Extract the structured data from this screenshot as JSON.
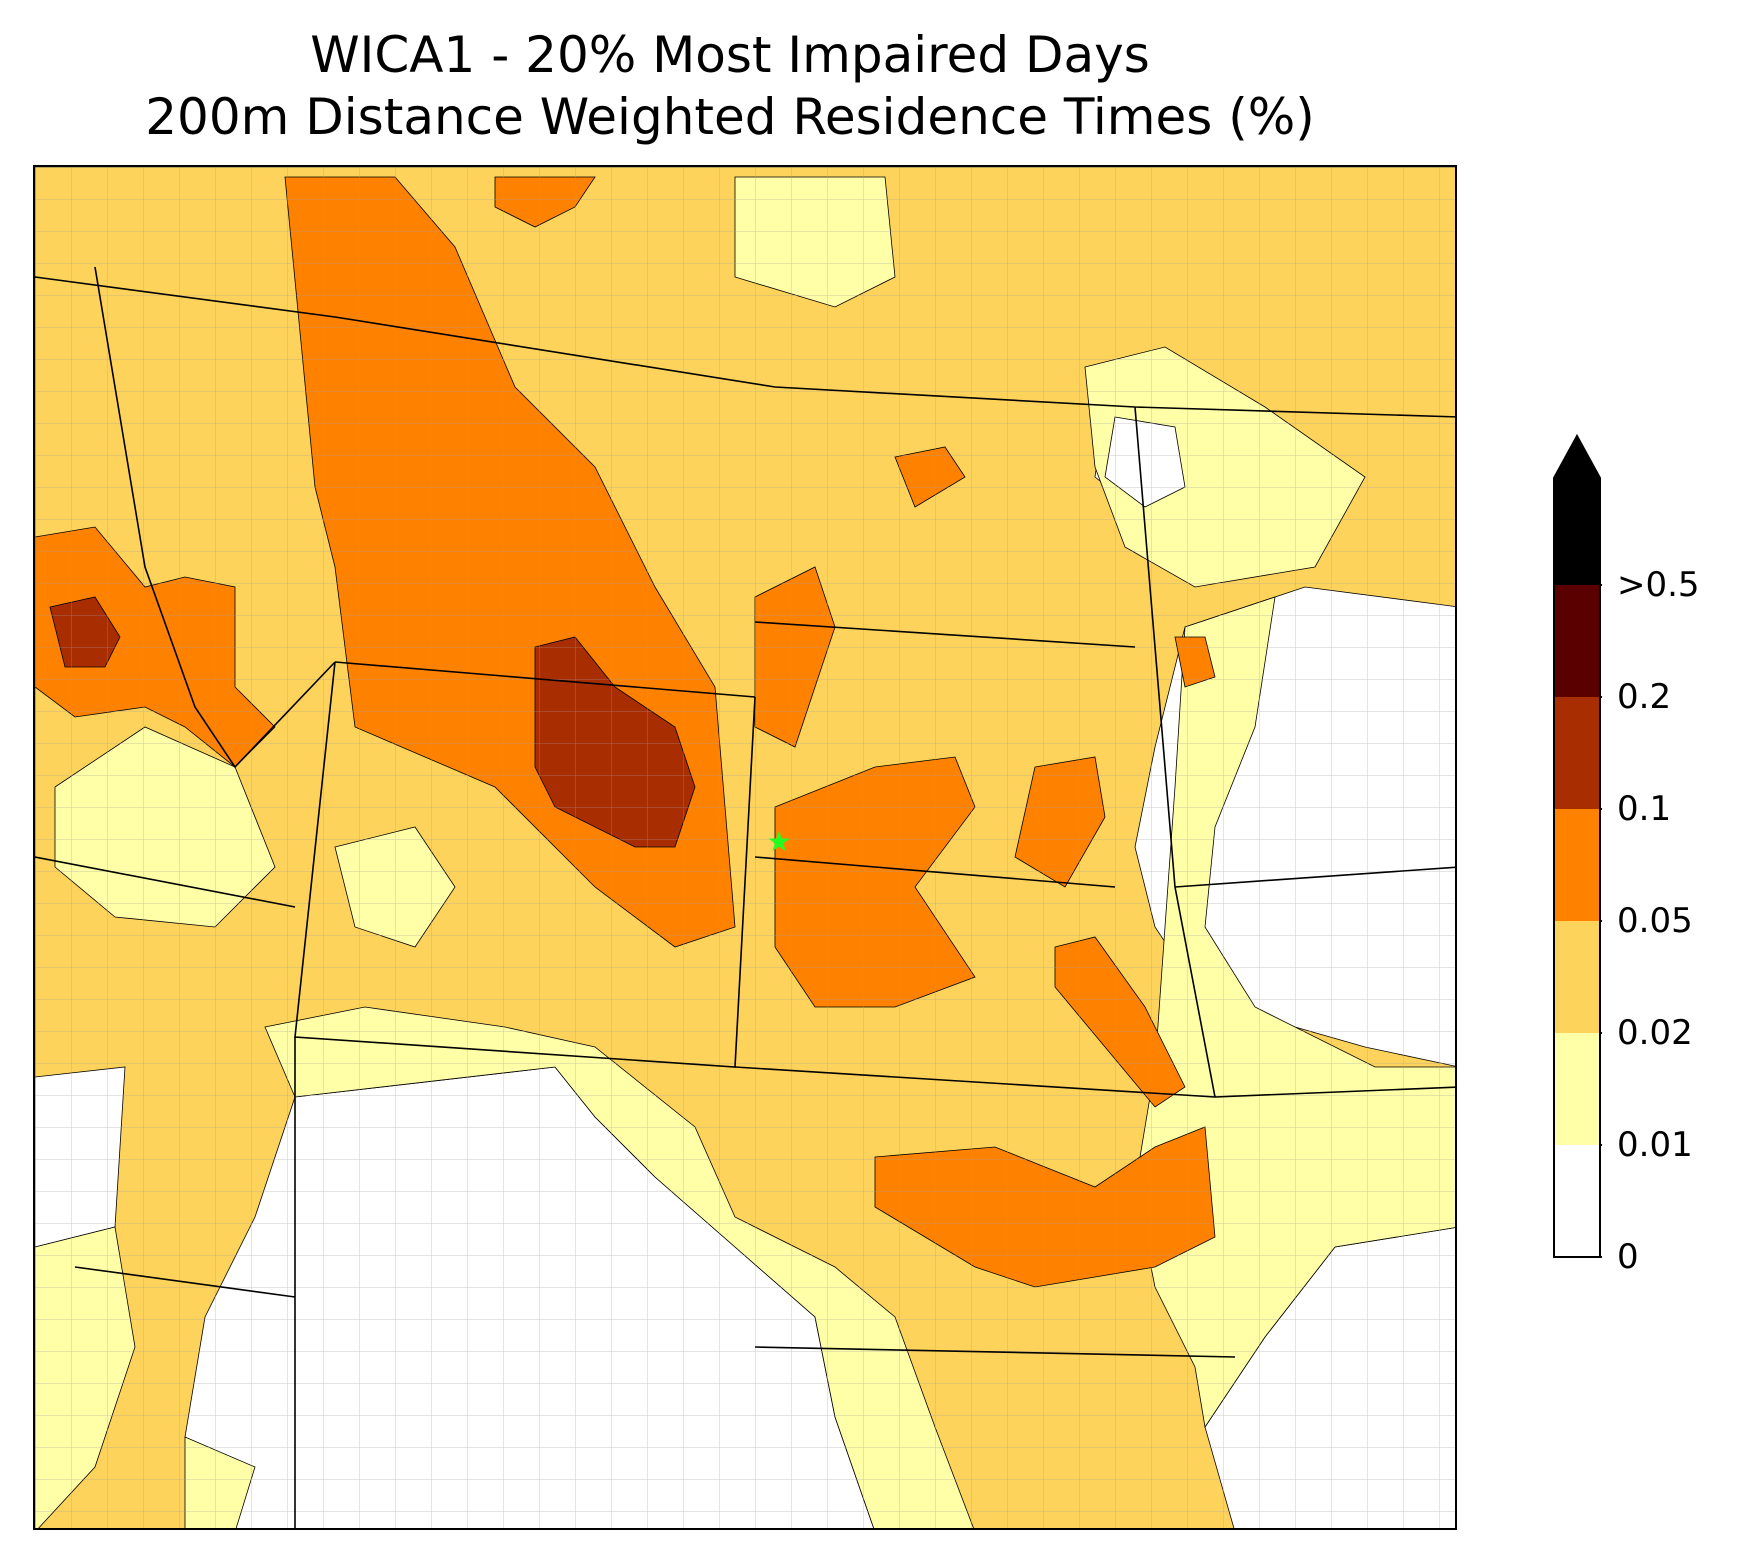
{
  "title": {
    "line1": "WICA1 - 20% Most Impaired Days",
    "line2": "200m Distance Weighted Residence Times (%)"
  },
  "colors": {
    "levels": [
      "#ffffff",
      "#ffffa8",
      "#fed35b",
      "#fe8200",
      "#a82d00",
      "#5a0000",
      "#000000"
    ],
    "marker": "#22ff22",
    "state_lines": "#000000",
    "county_lines": "#a0a0a0"
  },
  "colorbar": {
    "labels": [
      "0",
      "0.01",
      "0.02",
      "0.05",
      "0.1",
      "0.2",
      ">0.5"
    ],
    "extend": "max"
  },
  "marker": {
    "name": "WICA1",
    "icon": "green-star-icon"
  }
}
